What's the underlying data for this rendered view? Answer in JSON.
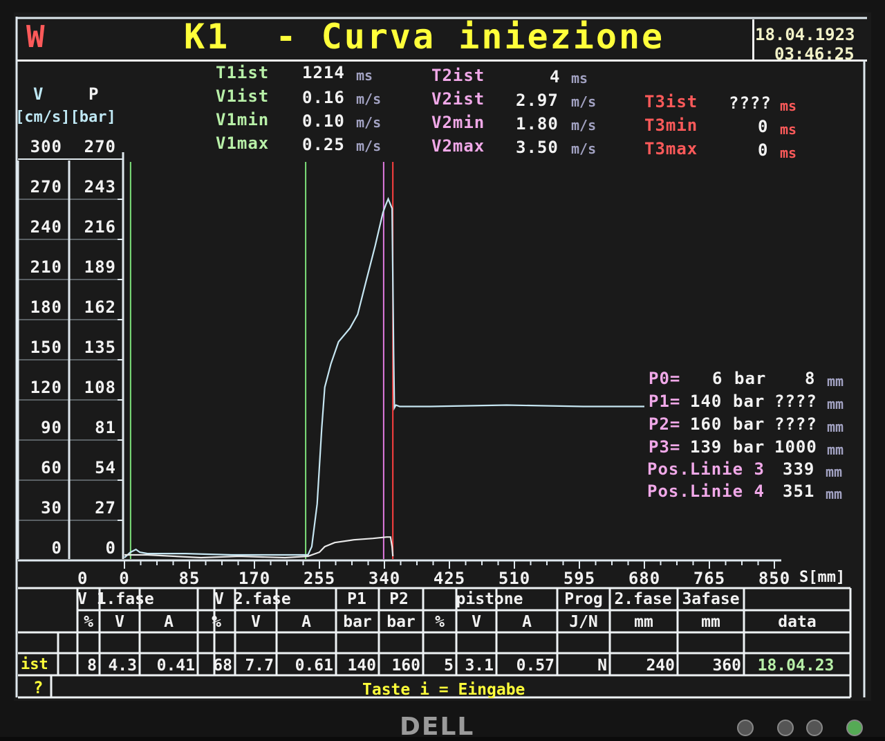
{
  "header": {
    "logo": "W",
    "title": "K1  - Curva iniezione",
    "date": "18.04.1923",
    "time": "03:46:25"
  },
  "axes": {
    "v_label": "V",
    "p_label": "P",
    "unit_label": "[cm/s][bar]",
    "v_ticks": [
      "300",
      "270",
      "240",
      "210",
      "180",
      "150",
      "120",
      "90",
      "60",
      "30",
      "0"
    ],
    "p_ticks": [
      "270",
      "243",
      "216",
      "189",
      "162",
      "135",
      "108",
      "81",
      "54",
      "27",
      "0"
    ],
    "x_offset_label": "0",
    "x_ticks": [
      "0",
      "85",
      "170",
      "255",
      "340",
      "425",
      "510",
      "595",
      "680",
      "765",
      "850"
    ],
    "x_unit": "S[mm]"
  },
  "stats": {
    "group1": [
      {
        "label": "T1ist",
        "value": "1214",
        "unit": "ms"
      },
      {
        "label": "V1ist",
        "value": "0.16",
        "unit": "m/s"
      },
      {
        "label": "V1min",
        "value": "0.10",
        "unit": "m/s"
      },
      {
        "label": "V1max",
        "value": "0.25",
        "unit": "m/s"
      }
    ],
    "group2": [
      {
        "label": "T2ist",
        "value": "4",
        "unit": "ms"
      },
      {
        "label": "V2ist",
        "value": "2.97",
        "unit": "m/s"
      },
      {
        "label": "V2min",
        "value": "1.80",
        "unit": "m/s"
      },
      {
        "label": "V2max",
        "value": "3.50",
        "unit": "m/s"
      }
    ],
    "group3": [
      {
        "label": "T3ist",
        "value": "????",
        "unit": "ms"
      },
      {
        "label": "T3min",
        "value": "0",
        "unit": "ms"
      },
      {
        "label": "T3max",
        "value": "0",
        "unit": "ms"
      }
    ]
  },
  "pressure_points": [
    {
      "label": "P0=",
      "value": "6",
      "bar": "bar",
      "pos": "8",
      "unit": "mm"
    },
    {
      "label": "P1=",
      "value": "140",
      "bar": "bar",
      "pos": "????",
      "unit": "mm"
    },
    {
      "label": "P2=",
      "value": "160",
      "bar": "bar",
      "pos": "????",
      "unit": "mm"
    },
    {
      "label": "P3=",
      "value": "139",
      "bar": "bar",
      "pos": "1000",
      "unit": "mm"
    }
  ],
  "pos_lines": [
    {
      "label": "Pos.Linie 3",
      "value": "339",
      "unit": "mm"
    },
    {
      "label": "Pos.Linie 4",
      "value": "351",
      "unit": "mm"
    }
  ],
  "table": {
    "groups": [
      "V 1.fase",
      "V 2.fase",
      "P1",
      "P2",
      "pistone",
      "Prog",
      "2.fase",
      "3afase"
    ],
    "subheaders": [
      "%",
      "V",
      "A",
      "%",
      "V",
      "A",
      "bar",
      "bar",
      "%",
      "V",
      "A",
      "J/N",
      "mm",
      "mm",
      "data"
    ],
    "row_label": "ist",
    "row": [
      "8",
      "4.3",
      "0.41",
      "68",
      "7.7",
      "0.61",
      "140",
      "160",
      "5",
      "3.1",
      "0.57",
      "N",
      "240",
      "360",
      "18.04.23"
    ]
  },
  "status": {
    "help": "?",
    "message": "Taste i = Eingabe"
  },
  "brand": "DELL",
  "chart_data": {
    "type": "line",
    "x_unit": "S[mm]",
    "xlim": [
      0,
      850
    ],
    "ylim_v": [
      0,
      300
    ],
    "ylim_p": [
      0,
      270
    ],
    "series": [
      {
        "x": [
          0,
          8,
          15,
          20,
          30,
          80,
          140,
          200,
          240,
          245,
          252,
          258,
          262,
          270,
          280,
          295,
          305,
          315,
          328,
          338,
          342,
          345,
          350,
          352,
          353,
          355,
          360,
          400,
          500,
          600,
          680
        ],
        "y": [
          1,
          5,
          7,
          5,
          4,
          4,
          3,
          3,
          3,
          9,
          40,
          95,
          125,
          142,
          158,
          168,
          178,
          200,
          228,
          252,
          258,
          262,
          255,
          150,
          110,
          112,
          111,
          111,
          112,
          111,
          111
        ]
      },
      {
        "x": [
          0,
          30,
          100,
          150,
          210,
          240,
          255,
          262,
          275,
          300,
          325,
          343,
          348,
          350,
          351
        ],
        "y": [
          3,
          3,
          1,
          2,
          1,
          2,
          5,
          9,
          12,
          14,
          15,
          16,
          16,
          9,
          2
        ]
      }
    ],
    "markers": [
      {
        "x": 8,
        "color": "#7de07a"
      },
      {
        "x": 237,
        "color": "#7de07a"
      },
      {
        "x": 339,
        "color": "#e07ae0"
      },
      {
        "x": 351,
        "color": "#ff4040"
      }
    ]
  }
}
